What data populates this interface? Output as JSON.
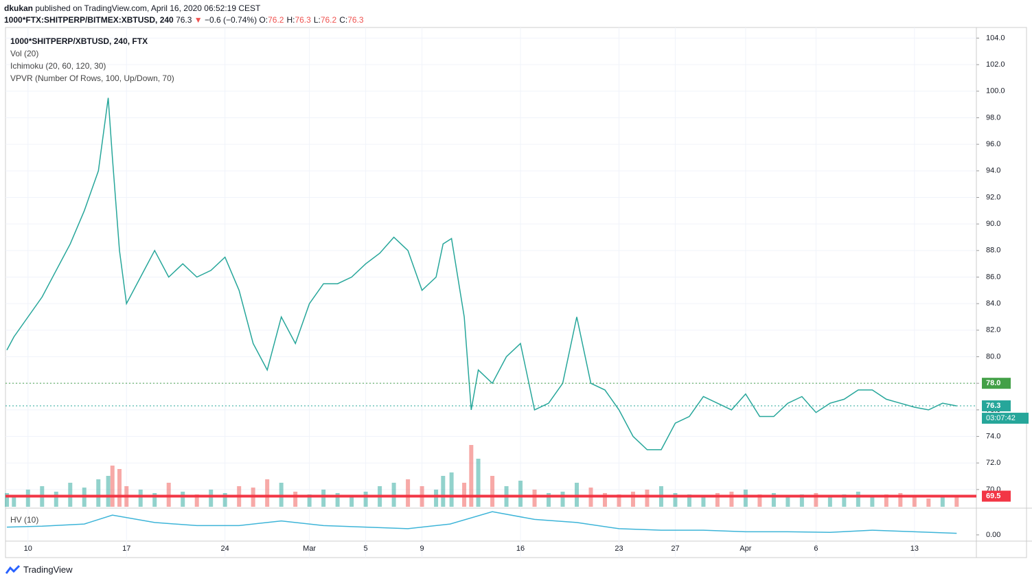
{
  "header": {
    "author": "dkukan",
    "published": "published on TradingView.com, April 16, 2020 06:52:19 CEST",
    "symbol": "1000*FTX:SHITPERP/BITMEX:XBTUSD, 240",
    "last": "76.3",
    "arrow": "▼",
    "change": "−0.6 (−0.74%)",
    "ohlc": [
      {
        "label": "O:",
        "value": "76.2"
      },
      {
        "label": "H:",
        "value": "76.3"
      },
      {
        "label": "L:",
        "value": "76.2"
      },
      {
        "label": "C:",
        "value": "76.3"
      }
    ]
  },
  "chart_data": [
    {
      "type": "line",
      "title": "1000*SHITPERP/XBTUSD, 240, FTX",
      "indicators": [
        "Vol (20)",
        "Ichimoku (20, 60, 120, 30)",
        "VPVR (Number Of Rows, 100, Up/Down, 70)"
      ],
      "x": [
        -1.5,
        -1,
        0,
        1,
        2,
        3,
        4,
        5,
        5.7,
        6,
        6.5,
        7,
        8,
        9,
        10,
        11,
        12,
        13,
        14,
        15,
        16,
        17,
        18,
        19,
        20,
        21,
        22,
        23,
        24,
        25,
        26,
        27,
        28,
        29,
        29.5,
        30.1,
        31,
        31.5,
        32,
        33,
        34,
        35,
        36,
        37,
        38,
        39,
        40,
        41,
        42,
        43,
        44,
        45,
        46,
        47,
        48,
        49,
        50,
        51,
        52,
        53,
        54,
        55,
        56,
        57,
        58,
        59,
        60,
        61,
        62,
        63,
        64,
        65,
        66
      ],
      "values": [
        80.5,
        81.5,
        83,
        84.5,
        86.5,
        88.5,
        91,
        94,
        99.5,
        95,
        88,
        84,
        86,
        88,
        86,
        87,
        86,
        86.5,
        87.5,
        85,
        81,
        79,
        83,
        81,
        84,
        85.5,
        85.5,
        86,
        87,
        87.8,
        89,
        88,
        85,
        86,
        88.5,
        88.9,
        83,
        76,
        79,
        78,
        80,
        81,
        76,
        76.5,
        78,
        83,
        78,
        77.5,
        76,
        74,
        73,
        73,
        75,
        75.5,
        77,
        76.5,
        76,
        77.2,
        75.5,
        75.5,
        76.5,
        77,
        75.8,
        76.5,
        76.8,
        77.5,
        77.5,
        76.8,
        76.5,
        76.2,
        76,
        76.5,
        76.3
      ],
      "color": "#26a69a",
      "volume": {
        "values": [
          20,
          15,
          25,
          30,
          22,
          35,
          28,
          40,
          45,
          60,
          55,
          30,
          25,
          20,
          35,
          22,
          18,
          25,
          20,
          30,
          28,
          40,
          35,
          22,
          18,
          25,
          20,
          15,
          22,
          30,
          35,
          40,
          30,
          25,
          45,
          50,
          35,
          90,
          70,
          45,
          30,
          38,
          25,
          20,
          22,
          35,
          28,
          20,
          18,
          22,
          25,
          30,
          20,
          18,
          15,
          20,
          22,
          25,
          18,
          20,
          15,
          18,
          20,
          15,
          18,
          22,
          15,
          18,
          20,
          15,
          12,
          15,
          14
        ],
        "ylim": [
          0,
          100
        ],
        "up_color": "#26a69a80",
        "down_color": "#ef535080"
      },
      "xlim": [
        -1.6,
        67.4
      ],
      "ylim": [
        68.7,
        104.8
      ],
      "xticks": [
        {
          "value": 0,
          "label": "10"
        },
        {
          "value": 7,
          "label": "17"
        },
        {
          "value": 14,
          "label": "24"
        },
        {
          "value": 20,
          "label": "Mar"
        },
        {
          "value": 24,
          "label": "5"
        },
        {
          "value": 28,
          "label": "9"
        },
        {
          "value": 35,
          "label": "16"
        },
        {
          "value": 42,
          "label": "23"
        },
        {
          "value": 46,
          "label": "27"
        },
        {
          "value": 51,
          "label": "Apr"
        },
        {
          "value": 56,
          "label": "6"
        },
        {
          "value": 63,
          "label": "13"
        }
      ],
      "yticks": [
        {
          "value": 70,
          "label": "70.0"
        },
        {
          "value": 72,
          "label": "72.0"
        },
        {
          "value": 74,
          "label": "74.0"
        },
        {
          "value": 76,
          "label": "76.0"
        },
        {
          "value": 78,
          "label": "78.0"
        },
        {
          "value": 80,
          "label": "80.0"
        },
        {
          "value": 82,
          "label": "82.0"
        },
        {
          "value": 84,
          "label": "84.0"
        },
        {
          "value": 86,
          "label": "86.0"
        },
        {
          "value": 88,
          "label": "88.0"
        },
        {
          "value": 90,
          "label": "90.0"
        },
        {
          "value": 92,
          "label": "92.0"
        },
        {
          "value": 94,
          "label": "94.0"
        },
        {
          "value": 96,
          "label": "96.0"
        },
        {
          "value": 98,
          "label": "98.0"
        },
        {
          "value": 100,
          "label": "100.0"
        },
        {
          "value": 102,
          "label": "102.0"
        },
        {
          "value": 104,
          "label": "104.0"
        }
      ],
      "grid": true,
      "levels": [
        {
          "value": 78,
          "label": "78.0",
          "color": "#43a047",
          "style": "dotted"
        },
        {
          "value": 76.3,
          "label": "76.3",
          "color": "#26a69a",
          "style": "dotted",
          "countdown": "03:07:42"
        },
        {
          "value": 69.5,
          "label": "69.5",
          "color": "#f23645",
          "style": "solid"
        }
      ]
    },
    {
      "type": "line",
      "title": "HV (10)",
      "x": [
        -1.5,
        1,
        4,
        6,
        9,
        12,
        15,
        18,
        21,
        24,
        27,
        30,
        33,
        36,
        39,
        42,
        45,
        48,
        51,
        54,
        57,
        60,
        63,
        66
      ],
      "values": [
        0.25,
        0.28,
        0.35,
        0.64,
        0.4,
        0.3,
        0.3,
        0.45,
        0.3,
        0.25,
        0.2,
        0.35,
        0.75,
        0.5,
        0.4,
        0.2,
        0.15,
        0.15,
        0.1,
        0.1,
        0.08,
        0.15,
        0.1,
        0.05
      ],
      "color": "#3cb4d8",
      "xlim": [
        -1.6,
        67.4
      ],
      "ylim": [
        -0.18,
        0.82
      ],
      "yticks": [
        {
          "value": 0,
          "label": "0.00"
        }
      ]
    }
  ],
  "footer": {
    "brand": "TradingView"
  }
}
